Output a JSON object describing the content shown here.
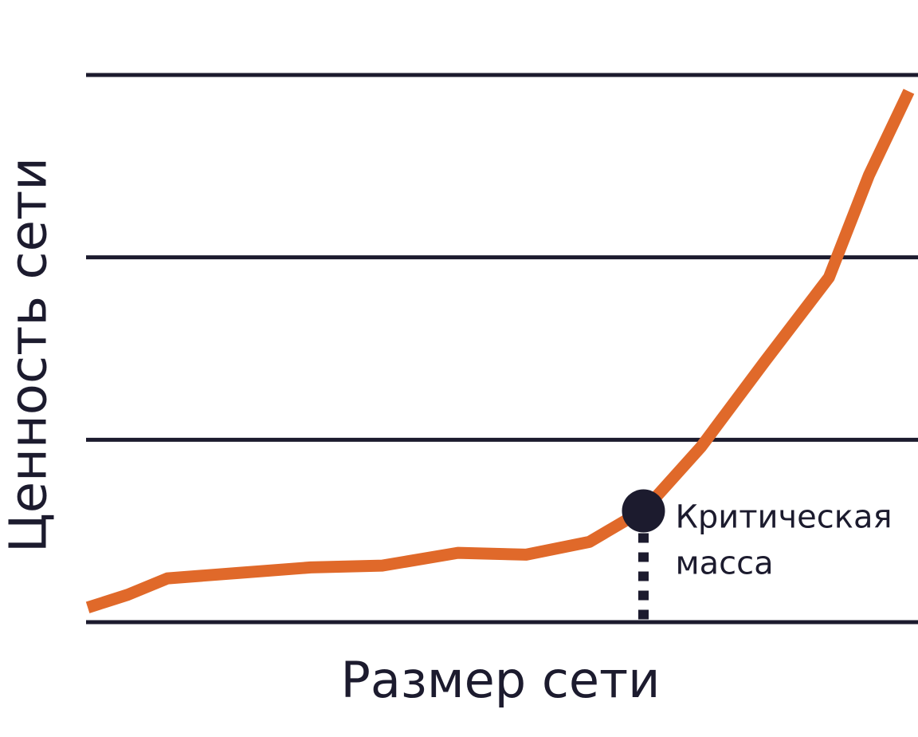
{
  "chart_data": {
    "type": "line",
    "x_label": "Размер сети",
    "y_label": "Ценность сети",
    "x": [
      0.2,
      5,
      9.8,
      18.4,
      27,
      35.6,
      44.7,
      52.9,
      60.5,
      67.2,
      73.9,
      81.6,
      89.3,
      94.1,
      98.9
    ],
    "series": [
      {
        "color": "#e0692a",
        "values": [
          0.08,
          0.15,
          0.24,
          0.27,
          0.3,
          0.31,
          0.38,
          0.37,
          0.44,
          0.62,
          0.96,
          1.43,
          1.89,
          2.45,
          2.91
        ]
      }
    ],
    "xlim": [
      0,
      100
    ],
    "ylim": [
      0,
      3
    ],
    "yticks": [
      0,
      1,
      2,
      3
    ],
    "grid": true,
    "grid_color": "#1c1b2e",
    "annotation": {
      "x": 67,
      "y": 0.61,
      "color": "#1c1b2e",
      "text": [
        "Критическая",
        "масса"
      ]
    }
  }
}
